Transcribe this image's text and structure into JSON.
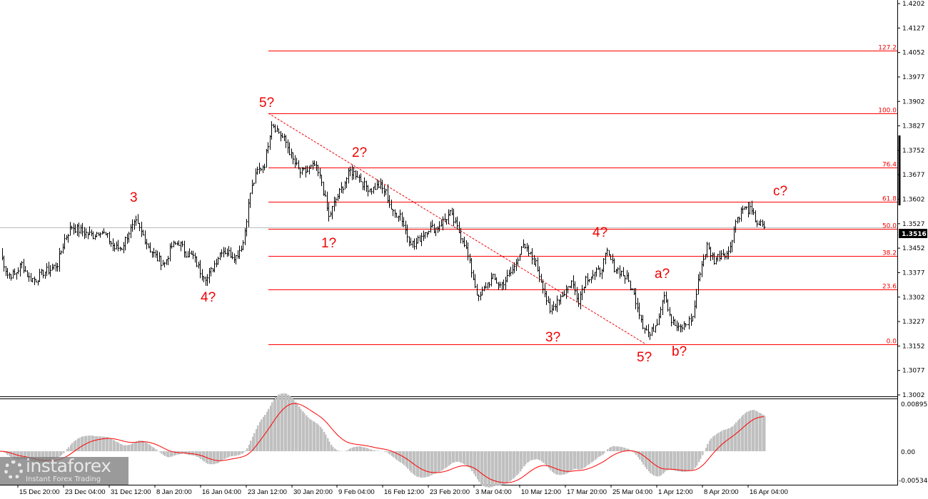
{
  "chart_data": {
    "type": "ohlc-line",
    "price_axis": {
      "ticks": [
        "1.4202",
        "1.4127",
        "1.4052",
        "1.3977",
        "1.3902",
        "1.3827",
        "1.3752",
        "1.3677",
        "1.3602",
        "1.3527",
        "1.3452",
        "1.3377",
        "1.3302",
        "1.3227",
        "1.3152",
        "1.3077",
        "1.3002"
      ],
      "ylim": [
        1.3002,
        1.4202
      ]
    },
    "current_price": "1.3516",
    "time_axis": {
      "ticks": [
        ":00",
        "15 Dec 20:00",
        "23 Dec 04:00",
        "31 Dec 12:00",
        "8 Jan 20:00",
        "16 Jan 04:00",
        "23 Jan 12:00",
        "30 Jan 20:00",
        "9 Feb 04:00",
        "16 Feb 12:00",
        "23 Feb 20:00",
        "3 Mar 04:00",
        "10 Mar 12:00",
        "17 Mar 20:00",
        "25 Mar 04:00",
        "1 Apr 12:00",
        "8 Apr 20:00",
        "16 Apr 04:00"
      ]
    },
    "closes": [
      1.3437,
      1.3371,
      1.3371,
      1.3404,
      1.336,
      1.3356,
      1.3378,
      1.3386,
      1.3404,
      1.348,
      1.3518,
      1.3507,
      1.3498,
      1.3491,
      1.3507,
      1.3485,
      1.3452,
      1.3454,
      1.3502,
      1.3528,
      1.3491,
      1.3448,
      1.3419,
      1.3404,
      1.3458,
      1.3469,
      1.3437,
      1.3426,
      1.3382,
      1.336,
      1.3404,
      1.3448,
      1.3437,
      1.3426,
      1.3469,
      1.3622,
      1.3688,
      1.371,
      1.3837,
      1.3808,
      1.3776,
      1.3721,
      1.3684,
      1.3688,
      1.3706,
      1.3655,
      1.3546,
      1.3601,
      1.3644,
      1.3688,
      1.3677,
      1.3644,
      1.3633,
      1.3644,
      1.3622,
      1.3557,
      1.3557,
      1.3491,
      1.3458,
      1.3491,
      1.3513,
      1.3513,
      1.3535,
      1.3557,
      1.3513,
      1.3469,
      1.3382,
      1.3294,
      1.3338,
      1.336,
      1.3338,
      1.336,
      1.3393,
      1.3458,
      1.3437,
      1.3404,
      1.3338,
      1.3251,
      1.3294,
      1.3316,
      1.3349,
      1.3294,
      1.336,
      1.3371,
      1.3382,
      1.3437,
      1.3393,
      1.3378,
      1.3349,
      1.3294,
      1.3218,
      1.3185,
      1.3229,
      1.3316,
      1.3229,
      1.3203,
      1.3218,
      1.324,
      1.3382,
      1.3458,
      1.3415,
      1.3437,
      1.3437,
      1.3535,
      1.3574,
      1.3568,
      1.3531,
      1.3516
    ],
    "fibonacci": {
      "color": "#ff0000",
      "levels": [
        {
          "label": "127.2",
          "price": 1.4057
        },
        {
          "label": "100.0",
          "price": 1.3866
        },
        {
          "label": "76.4",
          "price": 1.37
        },
        {
          "label": "61.8",
          "price": 1.3595
        },
        {
          "label": "50.0",
          "price": 1.3512
        },
        {
          "label": "38.2",
          "price": 1.3429
        },
        {
          "label": "23.6",
          "price": 1.3326
        },
        {
          "label": "0.0",
          "price": 1.3157
        }
      ]
    },
    "wave_labels": [
      "5?",
      "3",
      "4?",
      "2?",
      "1?",
      "4?",
      "3?",
      "5?",
      "a?",
      "b?",
      "c?"
    ],
    "oscillator": {
      "ticks": [
        "0.00895",
        "0.00",
        "-0.00534"
      ],
      "ylim": [
        -0.00534,
        0.00895
      ],
      "histogram_color": "#c0c0c0",
      "signal_color": "#ff0000"
    }
  },
  "logo": {
    "brand": "instaforex",
    "tagline": "Instant Forex Trading"
  }
}
